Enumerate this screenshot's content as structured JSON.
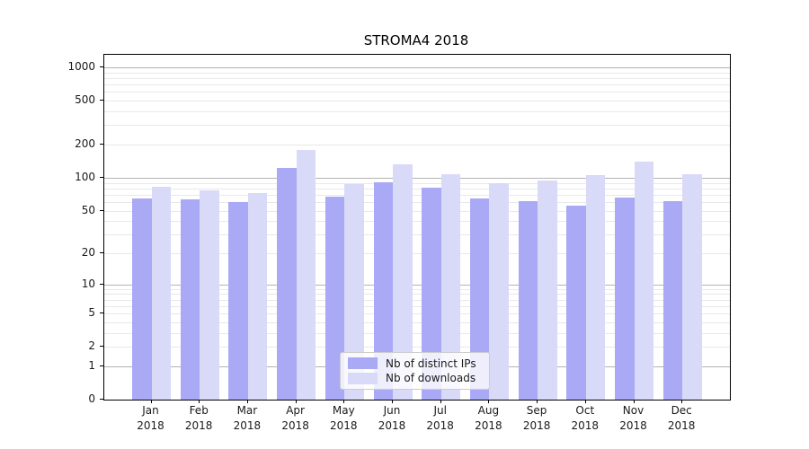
{
  "chart_data": {
    "type": "bar",
    "title": "STROMA4 2018",
    "categories": [
      "Jan",
      "Feb",
      "Mar",
      "Apr",
      "May",
      "Jun",
      "Jul",
      "Aug",
      "Sep",
      "Oct",
      "Nov",
      "Dec"
    ],
    "year_label": "2018",
    "series": [
      {
        "name": "Nb of distinct IPs",
        "color": "#a9a9f5",
        "values": [
          65,
          63,
          60,
          122,
          67,
          91,
          81,
          65,
          61,
          56,
          66,
          61
        ]
      },
      {
        "name": "Nb of downloads",
        "color": "#d9d9f8",
        "values": [
          83,
          76,
          73,
          180,
          87,
          132,
          107,
          90,
          94,
          105,
          141,
          108
        ]
      }
    ],
    "yscale": "log1p",
    "yticks": [
      0,
      1,
      2,
      5,
      10,
      20,
      50,
      100,
      200,
      500,
      1000
    ],
    "ylim": [
      0,
      1300
    ],
    "xlabel": "",
    "ylabel": "",
    "grid": {
      "on": true,
      "major_color": "#b3b3b3",
      "minor_color": "#e8e8e8"
    },
    "legend": {
      "position": "lower center"
    },
    "axis_color": "#000000",
    "background_color": "#ffffff"
  }
}
